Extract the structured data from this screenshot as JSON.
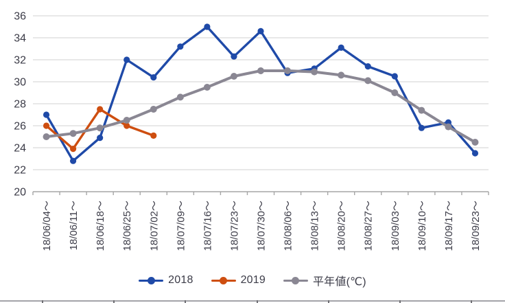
{
  "chart_data": {
    "type": "line",
    "title": "",
    "xlabel": "",
    "ylabel": "",
    "categories": [
      "18/06/04～",
      "18/06/11～",
      "18/06/18～",
      "18/06/25～",
      "18/07/02～",
      "18/07/09～",
      "18/07/16～",
      "18/07/23～",
      "18/07/30～",
      "18/08/06～",
      "18/08/13～",
      "18/08/20～",
      "18/08/27～",
      "18/09/03～",
      "18/09/10～",
      "18/09/17～",
      "18/09/23～"
    ],
    "series": [
      {
        "name": "2018",
        "color": "#1F4AA8",
        "values": [
          27.0,
          22.8,
          24.9,
          32.0,
          30.4,
          33.2,
          35.0,
          32.3,
          34.6,
          30.8,
          31.2,
          33.1,
          31.4,
          30.5,
          25.8,
          26.3,
          23.5
        ]
      },
      {
        "name": "2019",
        "color": "#CE4E10",
        "values": [
          26.0,
          23.9,
          27.5,
          26.0,
          25.1,
          null,
          null,
          null,
          null,
          null,
          null,
          null,
          null,
          null,
          null,
          null,
          null
        ]
      },
      {
        "name": "平年値(℃)",
        "color": "#8A8793",
        "values": [
          25.0,
          25.3,
          25.8,
          26.5,
          27.5,
          28.6,
          29.5,
          30.5,
          31.0,
          31.0,
          30.9,
          30.6,
          30.1,
          29.0,
          27.4,
          25.9,
          24.5
        ]
      }
    ],
    "ylim": [
      20,
      36
    ],
    "yticks": [
      36,
      34,
      32,
      30,
      28,
      26,
      24,
      22,
      20
    ],
    "grid": "horizontal",
    "legend_position": "bottom"
  },
  "colors": {
    "gridline": "#D9D9D9",
    "axis": "#A6A6A6",
    "text": "#3B3B47",
    "table_line": "#A3A3A8",
    "table_tick": "#6F6F74"
  }
}
